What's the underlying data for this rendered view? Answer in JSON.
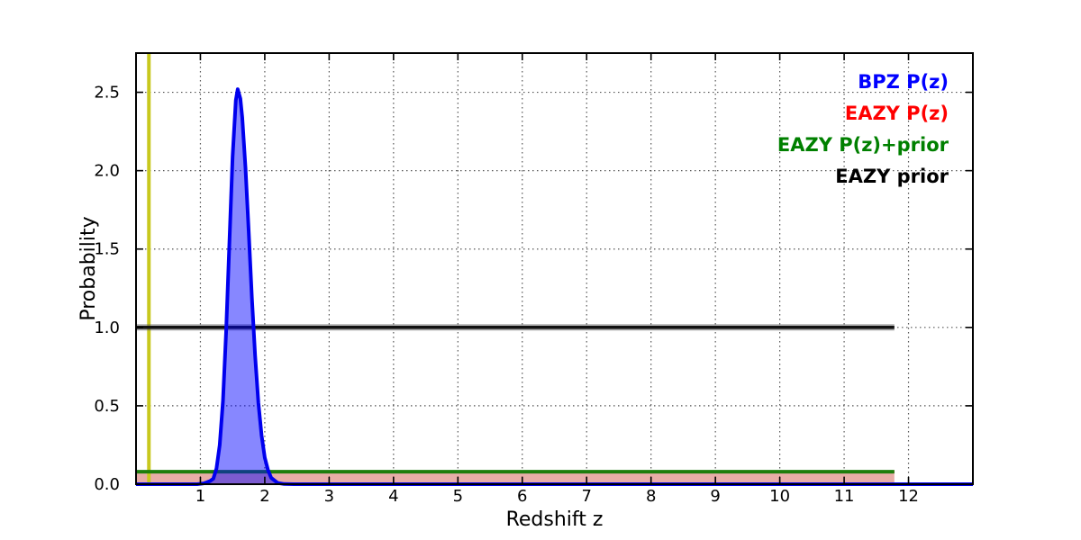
{
  "figure": {
    "xlabel": "Redshift z",
    "ylabel": "Probability"
  },
  "legend": {
    "position": "upper right",
    "entries": [
      {
        "label": "BPZ P(z)",
        "color": "#0000ff"
      },
      {
        "label": "EAZY P(z)",
        "color": "#ff0000"
      },
      {
        "label": "EAZY P(z)+prior",
        "color": "#008000"
      },
      {
        "label": "EAZY prior",
        "color": "#000000"
      }
    ]
  },
  "chart_data": {
    "type": "line",
    "title": "",
    "xlabel": "Redshift z",
    "ylabel": "Probability",
    "xlim": [
      0,
      13
    ],
    "ylim": [
      0,
      2.75
    ],
    "xticks": {
      "values": [
        1,
        2,
        3,
        4,
        5,
        6,
        7,
        8,
        9,
        10,
        11,
        12
      ],
      "labels": [
        "1",
        "2",
        "3",
        "4",
        "5",
        "6",
        "7",
        "8",
        "9",
        "10",
        "11",
        "12"
      ]
    },
    "yticks": {
      "values": [
        0,
        0.5,
        1.0,
        1.5,
        2.0,
        2.5
      ],
      "labels": [
        "0.0",
        "0.5",
        "1.0",
        "1.5",
        "2.0",
        "2.5"
      ]
    },
    "grid": "dotted",
    "legend_position": "upper right",
    "series": [
      {
        "name": "EAZY P(z)",
        "color": "#dd1100",
        "line_width": 3,
        "fill": "rgba(200,60,45,0.42)",
        "points": [
          [
            0,
            0.08
          ],
          [
            11.78,
            0.08
          ]
        ]
      },
      {
        "name": "EAZY P(z)+prior",
        "color": "#1e7d0c",
        "line_width": 4,
        "fill": null,
        "points": [
          [
            0,
            0.08
          ],
          [
            11.78,
            0.08
          ]
        ]
      },
      {
        "name": "EAZY prior",
        "color": "#111111",
        "halo_color": "rgba(90,90,90,0.5)",
        "line_width": 3.5,
        "halo_width": 7,
        "fill": null,
        "points": [
          [
            0,
            1.0
          ],
          [
            11.78,
            1.0
          ]
        ]
      },
      {
        "name": "BPZ P(z)",
        "color": "#0000ee",
        "line_width": 4,
        "fill": "rgba(0,0,255,0.47)",
        "points": [
          [
            0,
            0
          ],
          [
            0.95,
            0
          ],
          [
            1.05,
            0.005
          ],
          [
            1.1,
            0.012
          ],
          [
            1.15,
            0.02
          ],
          [
            1.2,
            0.035
          ],
          [
            1.25,
            0.1
          ],
          [
            1.3,
            0.25
          ],
          [
            1.35,
            0.53
          ],
          [
            1.4,
            0.97
          ],
          [
            1.45,
            1.53
          ],
          [
            1.5,
            2.09
          ],
          [
            1.55,
            2.45
          ],
          [
            1.58,
            2.52
          ],
          [
            1.62,
            2.46
          ],
          [
            1.65,
            2.34
          ],
          [
            1.7,
            2.02
          ],
          [
            1.75,
            1.61
          ],
          [
            1.8,
            1.19
          ],
          [
            1.85,
            0.82
          ],
          [
            1.9,
            0.52
          ],
          [
            1.95,
            0.31
          ],
          [
            2.0,
            0.17
          ],
          [
            2.05,
            0.09
          ],
          [
            2.1,
            0.04
          ],
          [
            2.2,
            0.008
          ],
          [
            2.3,
            0.001
          ],
          [
            2.45,
            0
          ],
          [
            13,
            0
          ]
        ]
      }
    ],
    "vlines": [
      {
        "name": "yellow-marker-line",
        "x": 0.2,
        "color": "#c8c81e",
        "width": 4
      }
    ]
  }
}
